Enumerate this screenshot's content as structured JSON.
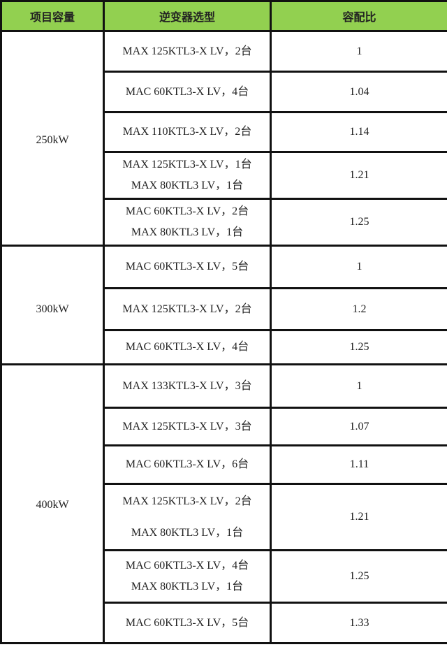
{
  "header": {
    "capacity": "项目容量",
    "inverter": "逆变器选型",
    "ratio": "容配比"
  },
  "header_color": "#92d050",
  "groups": [
    {
      "capacity": "250kW",
      "rows": [
        {
          "inverters": [
            "MAX 125KTL3-X LV，2台"
          ],
          "ratio": "1"
        },
        {
          "inverters": [
            "MAC 60KTL3-X LV，4台"
          ],
          "ratio": "1.04"
        },
        {
          "inverters": [
            "MAX 110KTL3-X LV，2台"
          ],
          "ratio": "1.14"
        },
        {
          "inverters": [
            "MAX 125KTL3-X LV，1台",
            "MAX 80KTL3 LV，1台"
          ],
          "ratio": "1.21"
        },
        {
          "inverters": [
            "MAC 60KTL3-X LV，2台",
            "MAX 80KTL3 LV，1台"
          ],
          "ratio": "1.25"
        }
      ]
    },
    {
      "capacity": "300kW",
      "rows": [
        {
          "inverters": [
            "MAC 60KTL3-X LV，5台"
          ],
          "ratio": "1"
        },
        {
          "inverters": [
            "MAX 125KTL3-X LV，2台"
          ],
          "ratio": "1.2"
        },
        {
          "inverters": [
            "MAC 60KTL3-X LV，4台"
          ],
          "ratio": "1.25"
        }
      ]
    },
    {
      "capacity": "400kW",
      "rows": [
        {
          "inverters": [
            "MAX 133KTL3-X LV，3台"
          ],
          "ratio": "1"
        },
        {
          "inverters": [
            "MAX 125KTL3-X LV，3台"
          ],
          "ratio": "1.07"
        },
        {
          "inverters": [
            "MAC 60KTL3-X LV，6台"
          ],
          "ratio": "1.11"
        },
        {
          "inverters": [
            "MAX 125KTL3-X LV，2台",
            "MAX 80KTL3 LV，1台"
          ],
          "ratio": "1.21"
        },
        {
          "inverters": [
            "MAC 60KTL3-X LV，4台",
            "MAX 80KTL3 LV，1台"
          ],
          "ratio": "1.25"
        },
        {
          "inverters": [
            "MAC 60KTL3-X LV，5台"
          ],
          "ratio": "1.33"
        }
      ]
    }
  ]
}
